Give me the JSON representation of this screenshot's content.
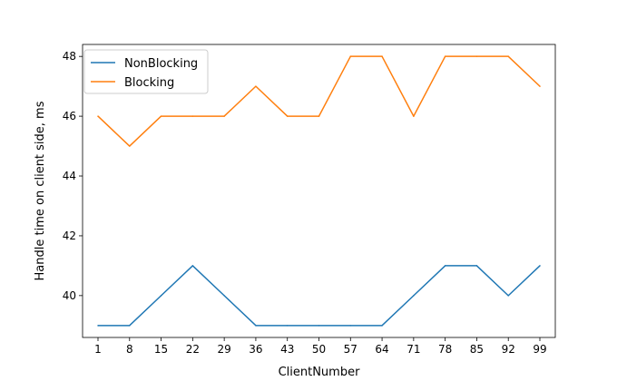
{
  "chart_data": {
    "type": "line",
    "title": "",
    "xlabel": "ClientNumber",
    "ylabel": "Handle time on client side, ms",
    "categories": [
      "1",
      "8",
      "15",
      "22",
      "29",
      "36",
      "43",
      "50",
      "57",
      "64",
      "71",
      "78",
      "85",
      "92",
      "99"
    ],
    "ylim": [
      38.6,
      48.4
    ],
    "yticks": [
      40,
      42,
      44,
      46,
      48
    ],
    "grid": false,
    "legend_position": "top-left",
    "series": [
      {
        "name": "NonBlocking",
        "color": "#1f77b4",
        "values": [
          39,
          39,
          40,
          41,
          40,
          39,
          39,
          39,
          39,
          39,
          40,
          41,
          41,
          40,
          41
        ]
      },
      {
        "name": "Blocking",
        "color": "#ff7f0e",
        "values": [
          46,
          45,
          46,
          46,
          46,
          47,
          46,
          46,
          48,
          48,
          46,
          48,
          48,
          48,
          47
        ]
      }
    ]
  }
}
